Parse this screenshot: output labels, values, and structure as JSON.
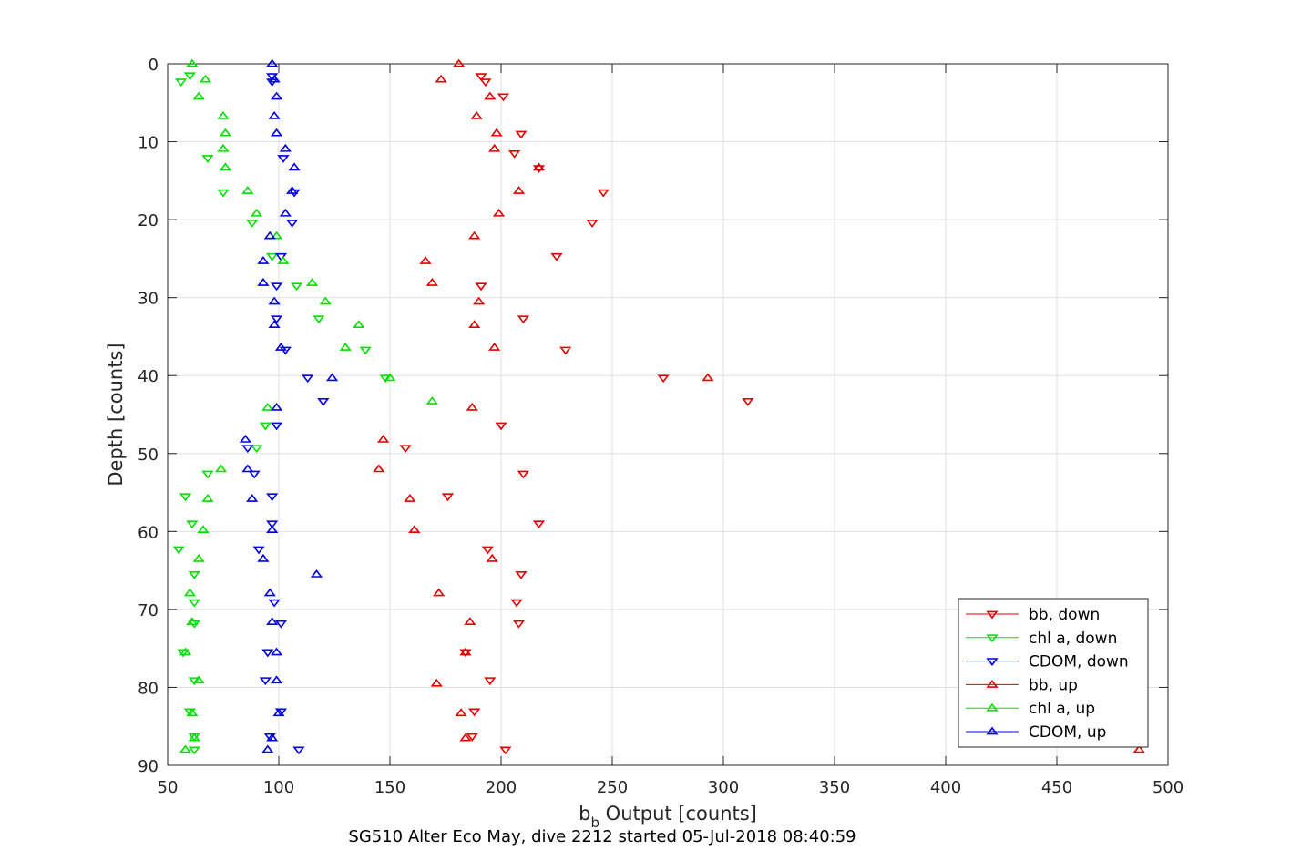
{
  "chart_data": {
    "type": "scatter",
    "xlabel": {
      "main": "b",
      "sub": "b",
      "rest": " Output [counts]"
    },
    "ylabel": "Depth [counts]",
    "caption": "SG510 Alter Eco May, dive 2212 started 05-Jul-2018 08:40:59",
    "xlim": [
      50,
      500
    ],
    "ylim": [
      0,
      90
    ],
    "y_reversed": true,
    "grid": true,
    "xticks": [
      "50",
      "100",
      "150",
      "200",
      "250",
      "300",
      "350",
      "400",
      "450",
      "500"
    ],
    "yticks": [
      "0",
      "10",
      "20",
      "30",
      "40",
      "50",
      "60",
      "70",
      "80",
      "90"
    ],
    "legend_position": "bottom-right",
    "series": [
      {
        "name": "bb, down",
        "color": "#e00000",
        "marker": "triangle-down",
        "points": [
          [
            191,
            1.6
          ],
          [
            193,
            2.3
          ],
          [
            201,
            4.2
          ],
          [
            209,
            9
          ],
          [
            206,
            11.5
          ],
          [
            217,
            13.4
          ],
          [
            246,
            16.5
          ],
          [
            241,
            20.4
          ],
          [
            225,
            24.7
          ],
          [
            191,
            28.5
          ],
          [
            210,
            32.7
          ],
          [
            229,
            36.7
          ],
          [
            273,
            40.3
          ],
          [
            311,
            43.3
          ],
          [
            200,
            46.4
          ],
          [
            157,
            49.3
          ],
          [
            210,
            52.6
          ],
          [
            176,
            55.5
          ],
          [
            217,
            59
          ],
          [
            194,
            62.3
          ],
          [
            209,
            65.5
          ],
          [
            207,
            69.1
          ],
          [
            208,
            71.8
          ],
          [
            184,
            75.5
          ],
          [
            195,
            79.1
          ],
          [
            188,
            83.1
          ],
          [
            187,
            86.3
          ],
          [
            202,
            88
          ]
        ]
      },
      {
        "name": "chl a, down",
        "color": "#00e000",
        "marker": "triangle-down",
        "points": [
          [
            60,
            1.5
          ],
          [
            56,
            2.3
          ],
          [
            68,
            12.1
          ],
          [
            75,
            16.5
          ],
          [
            88,
            20.4
          ],
          [
            97,
            24.7
          ],
          [
            108,
            28.5
          ],
          [
            118,
            32.7
          ],
          [
            139,
            36.7
          ],
          [
            148,
            40.3
          ],
          [
            94,
            46.4
          ],
          [
            90,
            49.3
          ],
          [
            68,
            52.6
          ],
          [
            58,
            55.5
          ],
          [
            61,
            59
          ],
          [
            55,
            62.3
          ],
          [
            62,
            65.5
          ],
          [
            62,
            69.1
          ],
          [
            62,
            71.8
          ],
          [
            57,
            75.5
          ],
          [
            62,
            79.1
          ],
          [
            60,
            83.1
          ],
          [
            62,
            86.3
          ],
          [
            62,
            88
          ]
        ]
      },
      {
        "name": "CDOM, down",
        "color": "#0000e0",
        "marker": "triangle-down",
        "points": [
          [
            97,
            1.6
          ],
          [
            97,
            2.3
          ],
          [
            102,
            12.1
          ],
          [
            107,
            16.5
          ],
          [
            106,
            20.4
          ],
          [
            101,
            24.7
          ],
          [
            99,
            28.5
          ],
          [
            99,
            32.7
          ],
          [
            103,
            36.7
          ],
          [
            113,
            40.3
          ],
          [
            120,
            43.3
          ],
          [
            99,
            46.4
          ],
          [
            86,
            49.3
          ],
          [
            89,
            52.6
          ],
          [
            97,
            55.5
          ],
          [
            97,
            59
          ],
          [
            91,
            62.3
          ],
          [
            98,
            69.1
          ],
          [
            101,
            71.8
          ],
          [
            95,
            75.5
          ],
          [
            94,
            79.1
          ],
          [
            101,
            83.1
          ],
          [
            96,
            86.3
          ],
          [
            109,
            88
          ]
        ]
      },
      {
        "name": "bb, up",
        "color": "#e00000",
        "marker": "triangle-up",
        "points": [
          [
            181,
            0
          ],
          [
            173,
            2
          ],
          [
            195,
            4.2
          ],
          [
            189,
            6.7
          ],
          [
            198,
            8.9
          ],
          [
            197,
            10.9
          ],
          [
            217,
            13.3
          ],
          [
            208,
            16.3
          ],
          [
            199,
            19.2
          ],
          [
            188,
            22.1
          ],
          [
            166,
            25.3
          ],
          [
            169,
            28.1
          ],
          [
            190,
            30.5
          ],
          [
            188,
            33.5
          ],
          [
            197,
            36.4
          ],
          [
            293,
            40.3
          ],
          [
            187,
            44.1
          ],
          [
            147,
            48.2
          ],
          [
            145,
            52
          ],
          [
            159,
            55.8
          ],
          [
            161,
            59.8
          ],
          [
            196,
            63.5
          ],
          [
            172,
            67.9
          ],
          [
            186,
            71.6
          ],
          [
            184,
            75.5
          ],
          [
            171,
            79.5
          ],
          [
            182,
            83.3
          ],
          [
            184,
            86.5
          ],
          [
            487,
            88
          ]
        ]
      },
      {
        "name": "chl a, up",
        "color": "#00e000",
        "marker": "triangle-up",
        "points": [
          [
            61,
            0
          ],
          [
            67,
            2
          ],
          [
            64,
            4.2
          ],
          [
            75,
            6.7
          ],
          [
            76,
            8.9
          ],
          [
            75,
            10.9
          ],
          [
            76,
            13.3
          ],
          [
            86,
            16.3
          ],
          [
            90,
            19.2
          ],
          [
            99,
            22.1
          ],
          [
            102,
            25.3
          ],
          [
            115,
            28.1
          ],
          [
            121,
            30.5
          ],
          [
            136,
            33.5
          ],
          [
            130,
            36.4
          ],
          [
            150,
            40.3
          ],
          [
            169,
            43.3
          ],
          [
            95,
            44.1
          ],
          [
            74,
            52
          ],
          [
            68,
            55.8
          ],
          [
            66,
            59.8
          ],
          [
            64,
            63.5
          ],
          [
            60,
            67.9
          ],
          [
            61,
            71.6
          ],
          [
            58,
            75.5
          ],
          [
            64,
            79.1
          ],
          [
            61,
            83.3
          ],
          [
            62,
            86.5
          ],
          [
            58,
            88
          ]
        ]
      },
      {
        "name": "CDOM, up",
        "color": "#0000e0",
        "marker": "triangle-up",
        "points": [
          [
            97,
            0
          ],
          [
            98,
            2
          ],
          [
            99,
            4.2
          ],
          [
            98,
            6.7
          ],
          [
            99,
            8.9
          ],
          [
            103,
            10.9
          ],
          [
            107,
            13.3
          ],
          [
            106,
            16.3
          ],
          [
            103,
            19.2
          ],
          [
            96,
            22.1
          ],
          [
            93,
            25.3
          ],
          [
            93,
            28.1
          ],
          [
            98,
            30.5
          ],
          [
            98,
            33.5
          ],
          [
            101,
            36.4
          ],
          [
            124,
            40.3
          ],
          [
            99,
            44.1
          ],
          [
            85,
            48.2
          ],
          [
            86,
            52
          ],
          [
            88,
            55.8
          ],
          [
            97,
            59.8
          ],
          [
            93,
            63.5
          ],
          [
            117,
            65.5
          ],
          [
            96,
            67.9
          ],
          [
            97,
            71.6
          ],
          [
            99,
            75.5
          ],
          [
            99,
            79.1
          ],
          [
            100,
            83.3
          ],
          [
            97,
            86.5
          ],
          [
            95,
            88
          ]
        ]
      }
    ]
  }
}
